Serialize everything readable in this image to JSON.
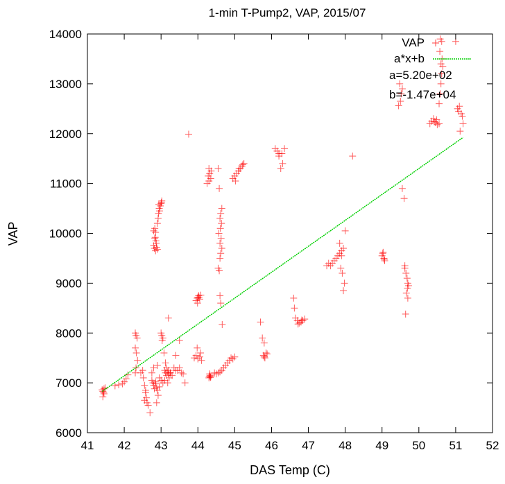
{
  "chart_data": {
    "type": "scatter",
    "title": "1-min T-Pump2, VAP, 2015/07",
    "xlabel": "DAS Temp (C)",
    "ylabel": "VAP",
    "xlim": [
      41,
      52
    ],
    "ylim": [
      6000,
      14000
    ],
    "xticks": [
      "41",
      "42",
      "43",
      "44",
      "45",
      "46",
      "47",
      "48",
      "49",
      "50",
      "51",
      "52"
    ],
    "yticks": [
      "6000",
      "7000",
      "8000",
      "9000",
      "10000",
      "11000",
      "12000",
      "13000",
      "14000"
    ],
    "grid": false,
    "legend_position": "top-right",
    "colors": {
      "points": "#ff0000",
      "fit": "#00d000",
      "axes": "#000000"
    },
    "series": [
      {
        "name": "VAP",
        "marker": "plus",
        "x": [
          41.4,
          41.42,
          41.45,
          41.48,
          41.42,
          41.45,
          41.44,
          41.75,
          41.85,
          41.95,
          42.0,
          42.05,
          42.1,
          42.3,
          42.32,
          42.35,
          42.3,
          42.33,
          42.36,
          42.32,
          42.3,
          42.45,
          42.5,
          42.52,
          42.55,
          42.58,
          42.6,
          42.62,
          42.55,
          42.65,
          42.58,
          42.7,
          42.75,
          42.78,
          42.8,
          42.85,
          42.88,
          42.9,
          42.95,
          42.8,
          42.9,
          42.85,
          42.95,
          43.0,
          42.82,
          42.92,
          43.05,
          42.75,
          42.88,
          43.0,
          43.02,
          43.05,
          43.03,
          43.08,
          43.1,
          43.12,
          43.15,
          43.18,
          43.2,
          43.22,
          43.1,
          43.15,
          43.2,
          43.12,
          43.25,
          43.18,
          43.25,
          43.3,
          43.35,
          43.4,
          43.2,
          43.45,
          43.5,
          43.55,
          43.6,
          43.65,
          43.5,
          43.4,
          42.8,
          42.82,
          42.85,
          42.88,
          42.9,
          42.83,
          42.87,
          42.8,
          42.83,
          42.86,
          42.84,
          42.85,
          42.9,
          42.93,
          42.95,
          42.98,
          43.0,
          43.02,
          42.92,
          42.96,
          43.01,
          42.94,
          43.75,
          43.95,
          43.98,
          44.0,
          44.02,
          44.05,
          44.08,
          43.99,
          44.03,
          43.9,
          43.95,
          44.0,
          44.05,
          44.1,
          43.98,
          44.07,
          44.25,
          44.3,
          44.35,
          44.28,
          44.32,
          44.36,
          44.3,
          44.3,
          44.33,
          44.35,
          44.32,
          44.31,
          44.34,
          44.45,
          44.5,
          44.55,
          44.6,
          44.65,
          44.7,
          44.75,
          44.8,
          44.85,
          44.9,
          44.95,
          45.0,
          44.55,
          44.58,
          44.6,
          44.62,
          44.65,
          44.6,
          44.63,
          44.57,
          44.61,
          44.64,
          44.6,
          44.62,
          44.65,
          44.58,
          44.55,
          44.6,
          44.62,
          44.66,
          44.95,
          45.0,
          45.05,
          45.1,
          45.15,
          45.2,
          45.25,
          45.02,
          45.12,
          45.22,
          45.7,
          45.75,
          45.8,
          45.85,
          45.78,
          45.82,
          45.88,
          45.8,
          46.1,
          46.15,
          46.2,
          46.25,
          46.3,
          46.35,
          46.2,
          46.28,
          46.6,
          46.62,
          46.65,
          46.7,
          46.75,
          46.8,
          46.85,
          46.9,
          46.72,
          46.82,
          47.5,
          47.55,
          47.6,
          47.65,
          47.7,
          47.75,
          47.8,
          47.85,
          47.9,
          47.95,
          47.88,
          47.92,
          47.98,
          47.85,
          47.9,
          48.0,
          47.95,
          48.2,
          49.0,
          49.02,
          49.05,
          49.07,
          49.03,
          49.06,
          49.45,
          49.5,
          49.55,
          49.48,
          49.52,
          49.55,
          49.6,
          49.62,
          49.65,
          49.68,
          49.7,
          49.72,
          49.66,
          49.64,
          49.7,
          49.62,
          49.69,
          50.3,
          50.35,
          50.4,
          50.45,
          50.5,
          50.55,
          50.42,
          50.48,
          50.55,
          50.58,
          50.6,
          50.62,
          50.65,
          50.6,
          50.63,
          50.57,
          50.62,
          50.58,
          51.0,
          51.05,
          51.1,
          51.15,
          51.2,
          51.12,
          51.18,
          51.08
        ],
        "y": [
          6860,
          6830,
          6780,
          6900,
          6720,
          6880,
          6810,
          6940,
          6960,
          6980,
          7020,
          7080,
          7160,
          8000,
          7950,
          7900,
          7700,
          7600,
          7450,
          7300,
          7200,
          7200,
          7250,
          7100,
          6950,
          6850,
          6700,
          6600,
          6650,
          6550,
          6800,
          6400,
          7050,
          7000,
          6950,
          7020,
          6900,
          6850,
          7100,
          7300,
          7350,
          6980,
          6920,
          7050,
          6880,
          6750,
          7000,
          7200,
          6600,
          8000,
          7950,
          7900,
          7850,
          7600,
          7250,
          7200,
          7150,
          7220,
          7180,
          7100,
          7050,
          7300,
          7250,
          7400,
          7200,
          7000,
          7200,
          7150,
          7300,
          7250,
          8300,
          7250,
          7300,
          7200,
          7180,
          7000,
          7850,
          7550,
          9750,
          9700,
          9650,
          9720,
          9680,
          9900,
          9800,
          10050,
          10100,
          9850,
          9920,
          10020,
          10200,
          10400,
          10500,
          10550,
          10600,
          10650,
          10300,
          10450,
          10620,
          10580,
          11990,
          8650,
          8700,
          8720,
          8750,
          8680,
          8760,
          8600,
          8720,
          7500,
          7550,
          7480,
          7520,
          7450,
          7700,
          7600,
          11000,
          11050,
          11100,
          11150,
          11200,
          11250,
          11300,
          7100,
          7150,
          7120,
          7180,
          7130,
          7110,
          7200,
          7180,
          7200,
          7220,
          7250,
          7300,
          7350,
          7400,
          7450,
          7500,
          7480,
          7520,
          9300,
          9250,
          9500,
          9600,
          9700,
          9800,
          9900,
          10000,
          10100,
          10200,
          10300,
          10400,
          10500,
          10900,
          11300,
          8750,
          8600,
          8170,
          11100,
          11150,
          11200,
          11250,
          11300,
          11350,
          11400,
          11050,
          11300,
          11380,
          8220,
          7900,
          7800,
          7600,
          7550,
          7500,
          7580,
          7520,
          11700,
          11650,
          11600,
          11300,
          11400,
          11700,
          11550,
          11600,
          8700,
          8500,
          8300,
          8250,
          8200,
          8220,
          8250,
          8280,
          8180,
          8260,
          9350,
          9400,
          9350,
          9400,
          9450,
          9500,
          9550,
          9600,
          9650,
          9700,
          9300,
          9200,
          9000,
          9800,
          9550,
          10050,
          8850,
          11550,
          9550,
          9600,
          9500,
          9450,
          9620,
          9480,
          12560,
          12650,
          12900,
          13000,
          12800,
          10900,
          10700,
          9300,
          9200,
          9100,
          9000,
          8950,
          8800,
          8380,
          8700,
          9350,
          8900,
          12200,
          12250,
          12300,
          12220,
          12180,
          12200,
          12240,
          12280,
          12600,
          12800,
          13000,
          13200,
          13350,
          13400,
          13500,
          13650,
          13850,
          13900,
          13850,
          12500,
          12550,
          12400,
          12200,
          12050,
          12350,
          12450
        ]
      }
    ],
    "fit": {
      "label": "a*x+b",
      "a": 520,
      "b": -14700,
      "x_range": [
        41.4,
        51.2
      ]
    },
    "legend": {
      "entries": [
        "VAP",
        "a*x+b"
      ],
      "annotations": [
        "a=5.20e+02",
        "b=-1.47e+04"
      ]
    }
  }
}
